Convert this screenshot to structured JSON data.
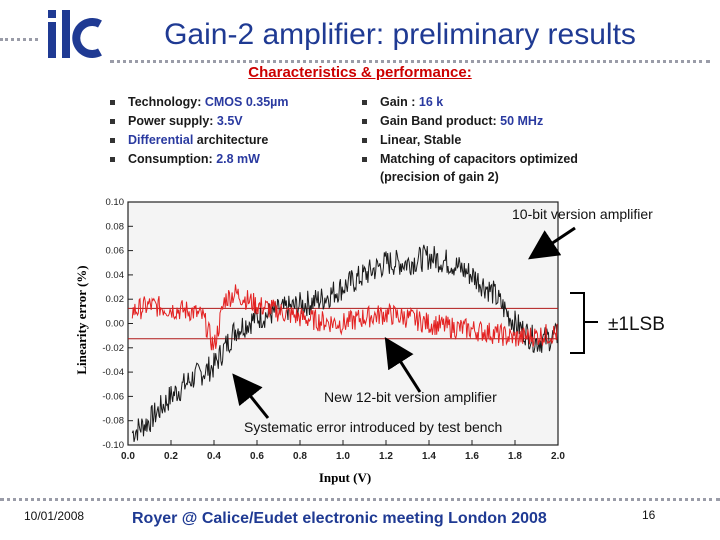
{
  "header": {
    "logo_text": "ilc",
    "title": "Gain-2 amplifier: preliminary results",
    "subtitle": "Characteristics & performance:"
  },
  "bullets_left": [
    {
      "label": "Technology: ",
      "value": "CMOS 0.35µm"
    },
    {
      "label": "Power supply: ",
      "value": "3.5V"
    },
    {
      "label": "Differential ",
      "value": "architecture"
    },
    {
      "label": "Consumption: ",
      "value": "2.8 mW"
    }
  ],
  "bullets_right": [
    {
      "label": "Gain : ",
      "value": "16 k"
    },
    {
      "label": "Gain Band product: ",
      "value": "50 MHz"
    },
    {
      "label": "Linear, Stable",
      "value": ""
    },
    {
      "label": "Matching of capacitors optimized (precision of gain 2)",
      "value": ""
    }
  ],
  "chart_data": {
    "type": "line",
    "xlabel": "Input (V)",
    "ylabel": "Linearity error (%)",
    "xlim": [
      0.0,
      2.0
    ],
    "ylim": [
      -0.1,
      0.1
    ],
    "x_ticks": [
      "0.0",
      "0.2",
      "0.4",
      "0.6",
      "0.8",
      "1.0",
      "1.2",
      "1.4",
      "1.6",
      "1.8",
      "2.0"
    ],
    "y_ticks": [
      "0.10",
      "0.08",
      "0.06",
      "0.04",
      "0.02",
      "0.00",
      "-0.02",
      "-0.04",
      "-0.06",
      "-0.08",
      "-0.10"
    ],
    "lsb_band": [
      0.0125,
      -0.0125
    ],
    "series": [
      {
        "name": "10-bit version amplifier",
        "color": "#1a1a1a",
        "x": [
          0.02,
          0.1,
          0.2,
          0.3,
          0.4,
          0.45,
          0.5,
          0.6,
          0.7,
          0.8,
          0.9,
          1.0,
          1.1,
          1.2,
          1.3,
          1.4,
          1.5,
          1.6,
          1.7,
          1.75,
          1.8,
          1.9,
          2.0
        ],
        "y": [
          -0.09,
          -0.08,
          -0.06,
          -0.045,
          -0.035,
          -0.02,
          -0.005,
          0.005,
          0.01,
          0.015,
          0.02,
          0.03,
          0.04,
          0.05,
          0.05,
          0.055,
          0.05,
          0.04,
          0.025,
          0.012,
          0.0,
          -0.015,
          -0.01
        ]
      },
      {
        "name": "New 12-bit version amplifier",
        "color": "#e32222",
        "x": [
          0.02,
          0.1,
          0.2,
          0.3,
          0.35,
          0.4,
          0.45,
          0.5,
          0.6,
          0.7,
          0.8,
          0.9,
          1.0,
          1.1,
          1.2,
          1.3,
          1.4,
          1.5,
          1.6,
          1.7,
          1.75,
          1.8,
          1.9,
          2.0
        ],
        "y": [
          0.01,
          0.015,
          0.012,
          0.01,
          0.005,
          -0.02,
          0.02,
          0.025,
          0.015,
          0.01,
          0.005,
          0.002,
          0.0,
          0.005,
          0.008,
          0.005,
          0.0,
          -0.003,
          -0.005,
          -0.008,
          -0.01,
          -0.012,
          -0.01,
          -0.008
        ]
      }
    ],
    "annotations": [
      "10-bit version amplifier",
      "±1LSB",
      "New 12-bit version amplifier",
      "Systematic error introduced by test bench"
    ]
  },
  "footer": {
    "date": "10/01/2008",
    "center": "Royer @ Calice/Eudet electronic meeting London 2008",
    "page": "16"
  }
}
